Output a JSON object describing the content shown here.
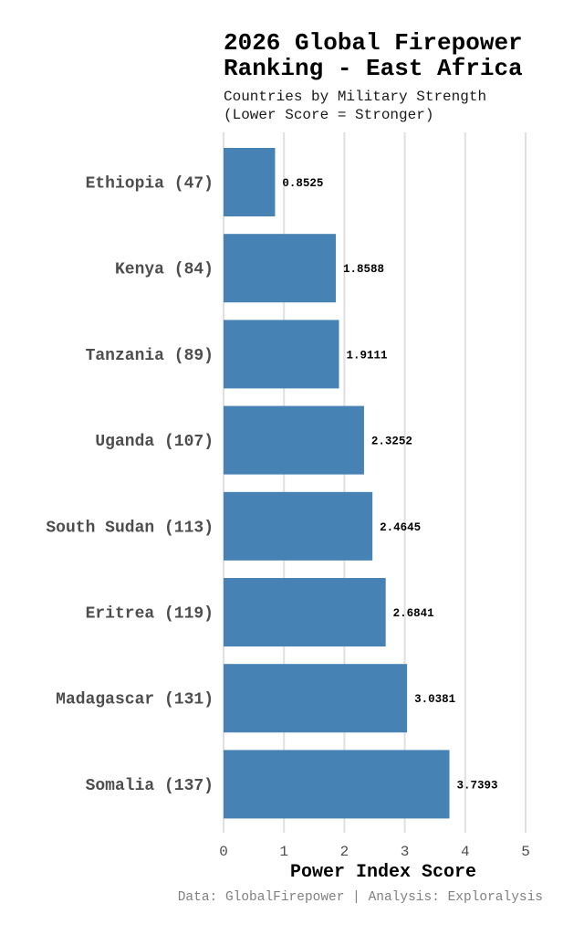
{
  "chart_data": {
    "type": "bar",
    "orientation": "horizontal",
    "title_lines": [
      "2026 Global Firepower",
      "Ranking - East Africa"
    ],
    "subtitle_lines": [
      "Countries by Military Strength",
      "(Lower Score = Stronger)"
    ],
    "categories": [
      "Ethiopia (47)",
      "Kenya (84)",
      "Tanzania (89)",
      "Uganda (107)",
      "South Sudan (113)",
      "Eritrea (119)",
      "Madagascar (131)",
      "Somalia (137)"
    ],
    "values": [
      0.8525,
      1.8588,
      1.9111,
      2.3252,
      2.4645,
      2.6841,
      3.0381,
      3.7393
    ],
    "value_labels": [
      "0.8525",
      "1.8588",
      "1.9111",
      "2.3252",
      "2.4645",
      "2.6841",
      "3.0381",
      "3.7393"
    ],
    "xlabel": "Power Index Score",
    "ylabel": "",
    "xlim": [
      0,
      5
    ],
    "xticks": [
      "0",
      "1",
      "2",
      "3",
      "4",
      "5"
    ],
    "grid": "vertical",
    "bar_color": "#4682B4",
    "caption": "Data: GlobalFirepower | Analysis: Exploralysis"
  }
}
